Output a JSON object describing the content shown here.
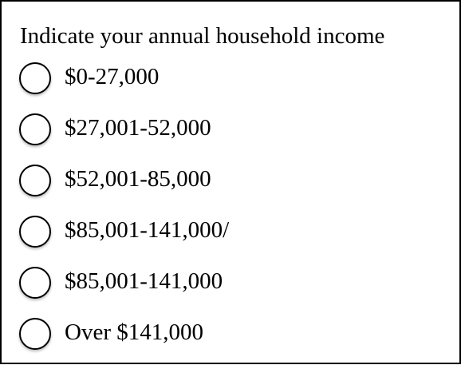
{
  "question": {
    "text": "Indicate your annual household income"
  },
  "options": [
    {
      "label": "$0-27,000",
      "selected": false
    },
    {
      "label": "$27,001-52,000",
      "selected": false
    },
    {
      "label": "$52,001-85,000",
      "selected": false
    },
    {
      "label": "$85,001-141,000/",
      "selected": false
    },
    {
      "label": "$85,001-141,000",
      "selected": false
    },
    {
      "label": "Over $141,000",
      "selected": false
    }
  ]
}
